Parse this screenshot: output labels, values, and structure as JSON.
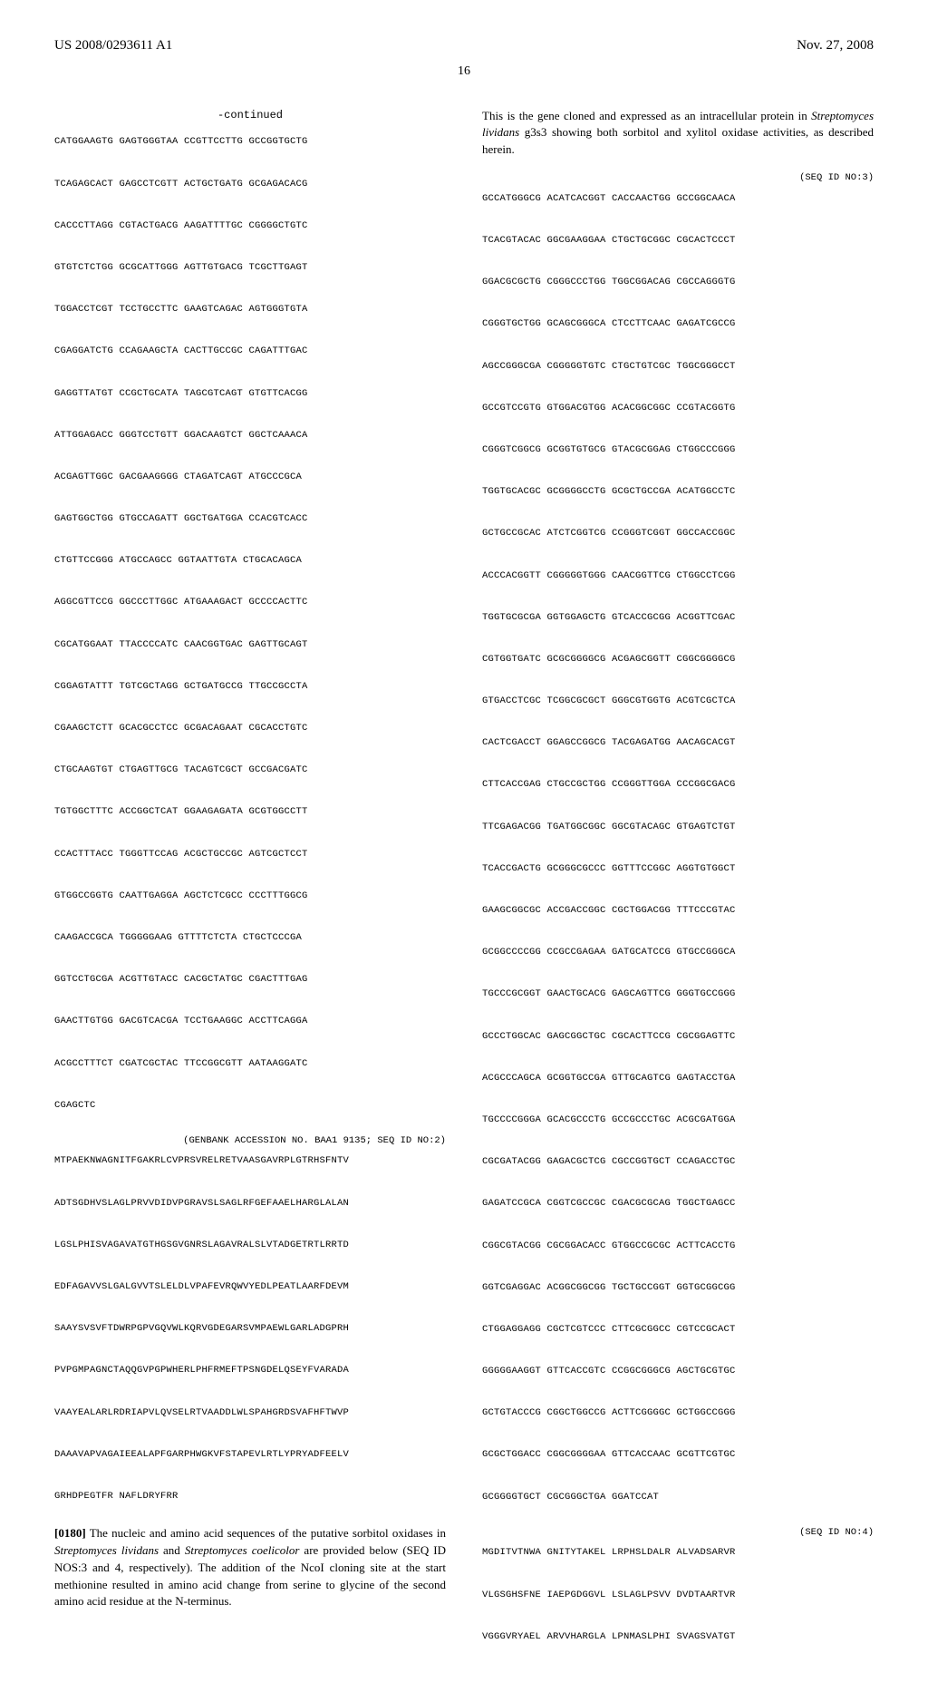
{
  "header": {
    "left": "US 2008/0293611 A1",
    "right": "Nov. 27, 2008",
    "page": "16"
  },
  "left_col": {
    "continued": "-continued",
    "seq1": "CATGGAAGTG GAGTGGGTAA CCGTTCCTTG GCCGGTGCTG\n\nTCAGAGCACT GAGCCTCGTT ACTGCTGATG GCGAGACACG\n\nCACCCTTAGG CGTACTGACG AAGATTTTGC CGGGGCTGTC\n\nGTGTCTCTGG GCGCATTGGG AGTTGTGACG TCGCTTGAGT\n\nTGGACCTCGT TCCTGCCTTC GAAGTCAGAC AGTGGGTGTA\n\nCGAGGATCTG CCAGAAGCTA CACTTGCCGC CAGATTTGAC\n\nGAGGTTATGT CCGCTGCATA TAGCGTCAGT GTGTTCACGG\n\nATTGGAGACC GGGTCCTGTT GGACAAGTCT GGCTCAAACA\n\nACGAGTTGGC GACGAAGGGG CTAGATCAGT ATGCCCGCA\n\nGAGTGGCTGG GTGCCAGATT GGCTGATGGA CCACGTCACC\n\nCTGTTCCGGG ATGCCAGCC GGTAATTGTA CTGCACAGCA\n\nAGGCGTTCCG GGCCCTTGGC ATGAAAGACT GCCCCACTTC\n\nCGCATGGAAT TTACCCCATC CAACGGTGAC GAGTTGCAGT\n\nCGGAGTATTT TGTCGCTAGG GCTGATGCCG TTGCCGCCTA\n\nCGAAGCTCTT GCACGCCTCC GCGACAGAAT CGCACCTGTC\n\nCTGCAAGTGT CTGAGTTGCG TACAGTCGCT GCCGACGATC\n\nTGTGGCTTTC ACCGGCTCAT GGAAGAGATA GCGTGGCCTT\n\nCCACTTTACC TGGGTTCCAG ACGCTGCCGC AGTCGCTCCT\n\nGTGGCCGGTG CAATTGAGGA AGCTCTCGCC CCCTTTGGCG\n\nCAAGACCGCA TGGGGGAAG GTTTTCTCTA CTGCTCCCGA\n\nGGTCCTGCGA ACGTTGTACC CACGCTATGC CGACTTTGAG\n\nGAACTTGTGG GACGTCACGA TCCTGAAGGC ACCTTCAGGA\n\nACGCCTTTCT CGATCGCTAC TTCCGGCGTT AATAAGGATC\n\nCGAGCTC",
    "seq2_label": "(GENBANK ACCESSION NO. BAA1 9135; SEQ ID NO:2)",
    "seq2": "MTPAEKNWAGNITFGAKRLCVPRSVRELRETVAASGAVRPLGTRHSFNTV\n\nADTSGDHVSLAGLPRVVDIDVPGRAVSLSAGLRFGEFAAELHARGLALAN\n\nLGSLPHISVAGAVATGTHGSGVGNRSLAGAVRALSLVTADGETRTLRRTD\n\nEDFAGAVVSLGALGVVTSLELDLVPAFEVRQWVYEDLPEATLAARFDEVM\n\nSAAYSVSVFTDWRPGPVGQVWLKQRVGDEGARSVMPAEWLGARLADGPRH\n\nPVPGMPAGNCTAQQGVPGPWHERLPHFRMEFTPSNGDELQSEYFVARADA\n\nVAAYEALARLRDRIAPVLQVSELRTVAADDLWLSPAHGRDSVAFHFTWVP\n\nDAAAVAPVAGAIEEALAPFGARPHWGKVFSTAPEVLRTLYPRYADFEELV\n\nGRHDPEGTFR NAFLDRYFRR",
    "para_num": "[0180]",
    "para_text": "The nucleic and amino acid sequences of the putative sorbitol oxidases in ",
    "para_italic1": "Streptomyces lividans",
    "para_mid": " and ",
    "para_italic2": "Streptomyces coelicolor",
    "para_end": " are provided below (SEQ ID NOS:3 and 4, respectively). The addition of the NcoI cloning site at the start methionine resulted in amino acid change from serine to glycine of the second amino acid residue at the N-terminus."
  },
  "right_col": {
    "intro1": "This is the gene cloned and expressed as an intracellular protein in ",
    "intro_italic": "Streptomyces lividans",
    "intro2": " g3s3 showing both sorbitol and xylitol oxidase activities, as described herein.",
    "seq3_label": "(SEQ ID NO:3)",
    "seq3": "GCCATGGGCG ACATCACGGT CACCAACTGG GCCGGCAACA\n\nTCACGTACAC GGCGAAGGAA CTGCTGCGGC CGCACTCCCT\n\nGGACGCGCTG CGGGCCCTGG TGGCGGACAG CGCCAGGGTG\n\nCGGGTGCTGG GCAGCGGGCA CTCCTTCAAC GAGATCGCCG\n\nAGCCGGGCGA CGGGGGTGTC CTGCTGTCGC TGGCGGGCCT\n\nGCCGTCCGTG GTGGACGTGG ACACGGCGGC CCGTACGGTG\n\nCGGGTCGGCG GCGGTGTGCG GTACGCGGAG CTGGCCCGGG\n\nTGGTGCACGC GCGGGGCCTG GCGCTGCCGA ACATGGCCTC\n\nGCTGCCGCAC ATCTCGGTCG CCGGGTCGGT GGCCACCGGC\n\nACCCACGGTT CGGGGGTGGG CAACGGTTCG CTGGCCTCGG\n\nTGGTGCGCGA GGTGGAGCTG GTCACCGCGG ACGGTTCGAC\n\nCGTGGTGATC GCGCGGGGCG ACGAGCGGTT CGGCGGGGCG\n\nGTGACCTCGC TCGGCGCGCT GGGCGTGGTG ACGTCGCTCA\n\nCACTCGACCT GGAGCCGGCG TACGAGATGG AACAGCACGT\n\nCTTCACCGAG CTGCCGCTGG CCGGGTTGGA CCCGGCGACG\n\nTTCGAGACGG TGATGGCGGC GGCGTACAGC GTGAGTCTGT\n\nTCACCGACTG GCGGGCGCCC GGTTTCCGGC AGGTGTGGCT\n\nGAAGCGGCGC ACCGACCGGC CGCTGGACGG TTTCCCGTAC\n\nGCGGCCCCGG CCGCCGAGAA GATGCATCCG GTGCCGGGCA\n\nTGCCCGCGGT GAACTGCACG GAGCAGTTCG GGGTGCCGGG\n\nGCCCTGGCAC GAGCGGCTGC CGCACTTCCG CGCGGAGTTC\n\nACGCCCAGCA GCGGTGCCGA GTTGCAGTCG GAGTACCTGA\n\nTGCCCCGGGA GCACGCCCTG GCCGCCCTGC ACGCGATGGA\n\nCGCGATACGG GAGACGCTCG CGCCGGTGCT CCAGACCTGC\n\nGAGATCCGCA CGGTCGCCGC CGACGCGCAG TGGCTGAGCC\n\nCGGCGTACGG CGCGGACACC GTGGCCGCGC ACTTCACCTG\n\nGGTCGAGGAC ACGGCGGCGG TGCTGCCGGT GGTGCGGCGG\n\nCTGGAGGAGG CGCTCGTCCC CTTCGCGGCC CGTCCGCACT\n\nGGGGGAAGGT GTTCACCGTC CCGGCGGGCG AGCTGCGTGC\n\nGCTGTACCCG CGGCTGGCCG ACTTCGGGGC GCTGGCCGGG\n\nGCGCTGGACC CGGCGGGGAA GTTCACCAAC GCGTTCGTGC\n\nGCGGGGTGCT CGCGGGCTGA GGATCCAT",
    "seq4_label": "(SEQ ID NO:4)",
    "seq4": "MGDITVTNWA GNITYTAKEL LRPHSLDALR ALVADSARVR\n\nVLGSGHSFNE IAEPGDGGVL LSLAGLPSVV DVDTAARTVR\n\nVGGGVRYAEL ARVVHARGLA LPNMASLPHI SVAGSVATGT"
  }
}
